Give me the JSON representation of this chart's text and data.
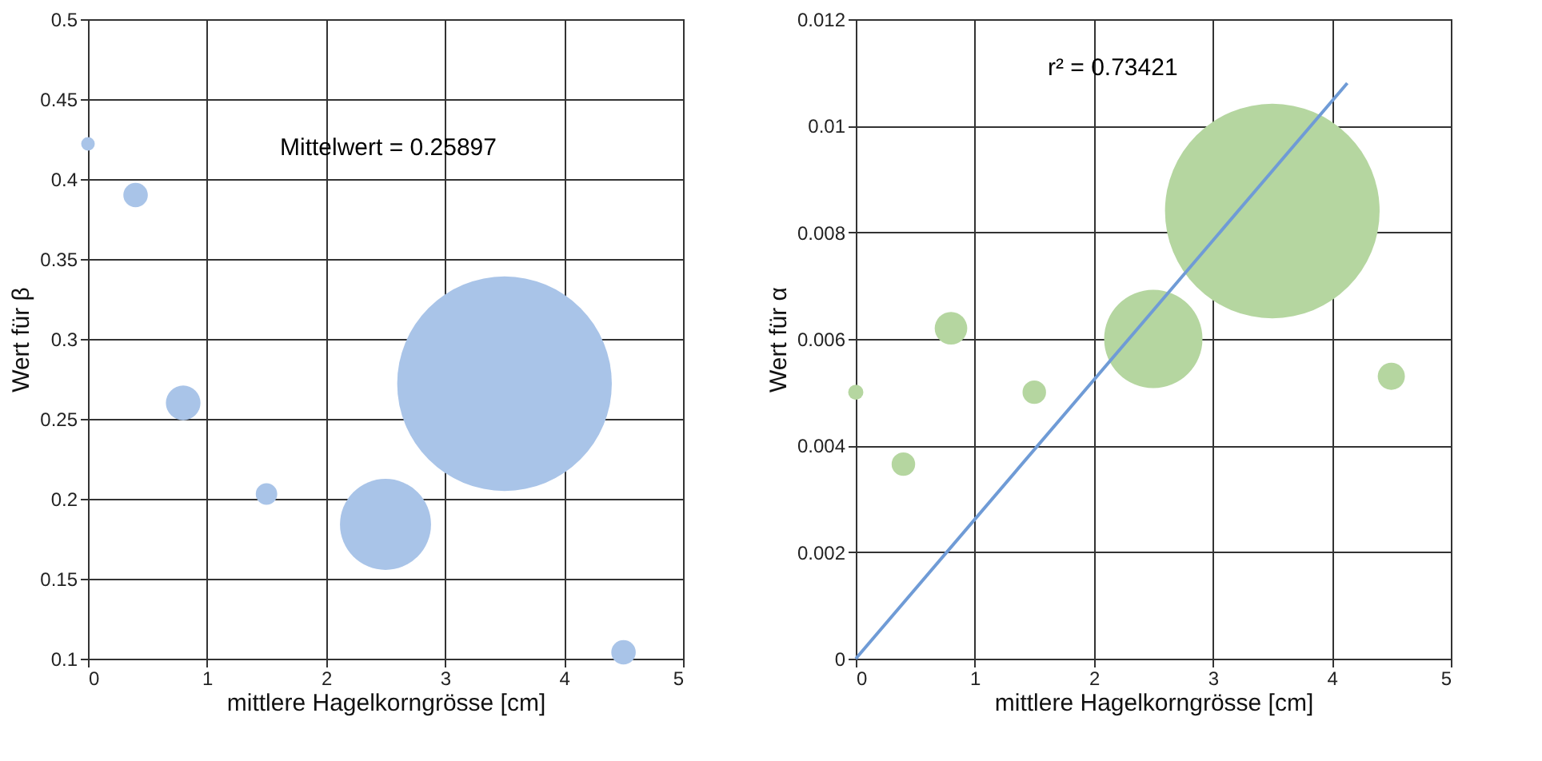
{
  "chart_data": [
    {
      "type": "bubble",
      "xlabel": "mittlere Hagelkorngrösse [cm]",
      "ylabel": "Wert für β",
      "annotations": [
        "Mittelwert = 0.25897"
      ],
      "x": [
        0,
        0.4,
        0.8,
        1.5,
        2.5,
        3.5,
        4.5
      ],
      "values": [
        0.422,
        0.39,
        0.26,
        0.203,
        0.184,
        0.272,
        0.104
      ],
      "sizes": [
        0.004,
        0.013,
        0.026,
        0.01,
        0.18,
        1,
        0.013
      ],
      "color": "#a9c4e8",
      "xlim": [
        0,
        5
      ],
      "xticks": [
        0,
        1,
        2,
        3,
        4,
        5
      ],
      "ylim": [
        0.1,
        0.5
      ],
      "yticks": [
        0.1,
        0.15,
        0.2,
        0.25,
        0.3,
        0.35,
        0.4,
        0.45,
        0.5
      ],
      "grid": true
    },
    {
      "type": "bubble",
      "xlabel": "mittlere Hagelkorngrösse [cm]",
      "ylabel": "Wert für α",
      "annotations": [
        "r² = 0.73421"
      ],
      "series": [
        {
          "type": "bubble",
          "color": "#b5d6a0",
          "x": [
            0,
            0.4,
            0.8,
            1.5,
            2.5,
            3.5,
            4.5
          ],
          "values": [
            0.005,
            0.00365,
            0.0062,
            0.005,
            0.006,
            0.0084,
            0.0053
          ],
          "sizes": [
            0.005,
            0.012,
            0.023,
            0.012,
            0.21,
            1,
            0.016
          ]
        },
        {
          "type": "line",
          "color": "#6f9bd6",
          "x": [
            0,
            4.13
          ],
          "values": [
            0,
            0.0108
          ]
        }
      ],
      "xlim": [
        0,
        5
      ],
      "xticks": [
        0,
        1,
        2,
        3,
        4,
        5
      ],
      "ylim": [
        0,
        0.012
      ],
      "yticks": [
        0,
        0.002,
        0.004,
        0.006,
        0.008,
        0.01,
        0.012
      ],
      "grid": true
    }
  ]
}
